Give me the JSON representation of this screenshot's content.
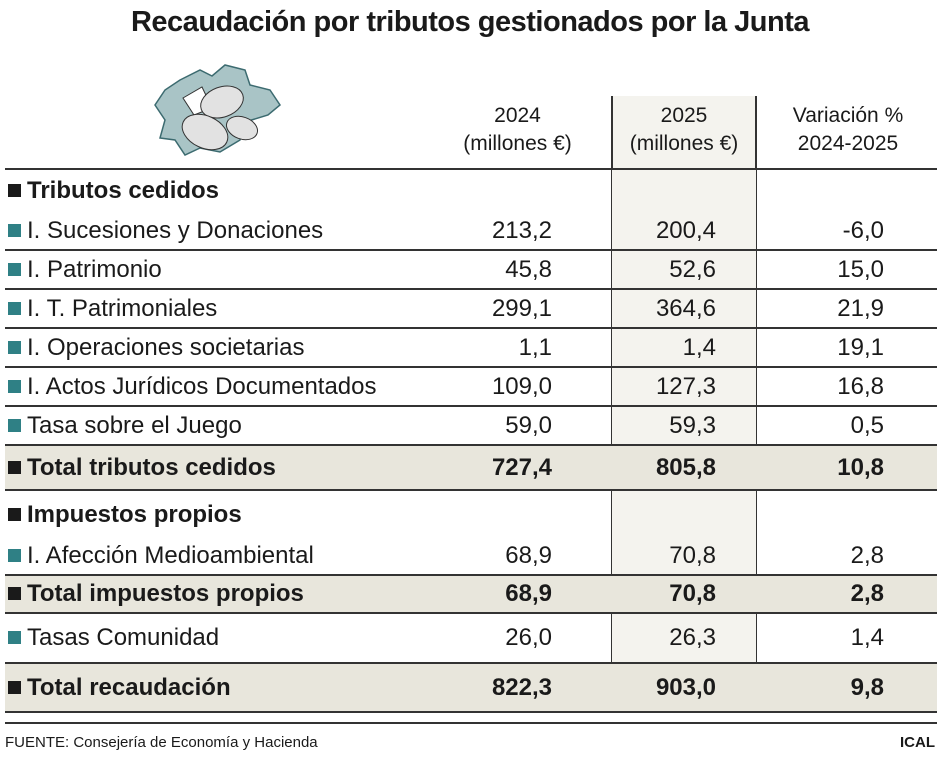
{
  "title": "Recaudación por tributos gestionados por la Junta",
  "headers": {
    "col2024": [
      "2024",
      "(millones €)"
    ],
    "col2025": [
      "2025",
      "(millones €)"
    ],
    "colvar": [
      "Variación %",
      "2024-2025"
    ]
  },
  "rows": [
    {
      "label": "Tributos cedidos",
      "type": "section"
    },
    {
      "label": "I. Sucesiones y Donaciones",
      "v2024": "213,2",
      "v2025": "200,4",
      "var": "-6,0"
    },
    {
      "label": "I. Patrimonio",
      "v2024": "45,8",
      "v2025": "52,6",
      "var": "15,0"
    },
    {
      "label": "I. T. Patrimoniales",
      "v2024": "299,1",
      "v2025": "364,6",
      "var": "21,9"
    },
    {
      "label": "I. Operaciones societarias",
      "v2024": "1,1",
      "v2025": "1,4",
      "var": "19,1"
    },
    {
      "label": "I. Actos Jurídicos Documentados",
      "v2024": "109,0",
      "v2025": "127,3",
      "var": "16,8"
    },
    {
      "label": "Tasa sobre el Juego",
      "v2024": "59,0",
      "v2025": "59,3",
      "var": "0,5"
    },
    {
      "label": "Total tributos cedidos",
      "v2024": "727,4",
      "v2025": "805,8",
      "var": "10,8",
      "type": "total"
    },
    {
      "label": "Impuestos propios",
      "type": "section"
    },
    {
      "label": "I. Afección Medioambiental",
      "v2024": "68,9",
      "v2025": "70,8",
      "var": "2,8"
    },
    {
      "label": "Total impuestos propios",
      "v2024": "68,9",
      "v2025": "70,8",
      "var": "2,8",
      "type": "total"
    },
    {
      "label": "Tasas Comunidad",
      "v2024": "26,0",
      "v2025": "26,3",
      "var": "1,4"
    },
    {
      "label": "Total recaudación",
      "v2024": "822,3",
      "v2025": "903,0",
      "var": "9,8",
      "type": "total"
    }
  ],
  "footer": {
    "source": "FUENTE: Consejería de Economía y Hacienda",
    "brand": "ICAL"
  },
  "colors": {
    "total_bg": "#e8e6dc",
    "col2025_bg": "#f4f3ee",
    "bullet_teal": "#2f8085",
    "map": "#a9c4c6"
  }
}
